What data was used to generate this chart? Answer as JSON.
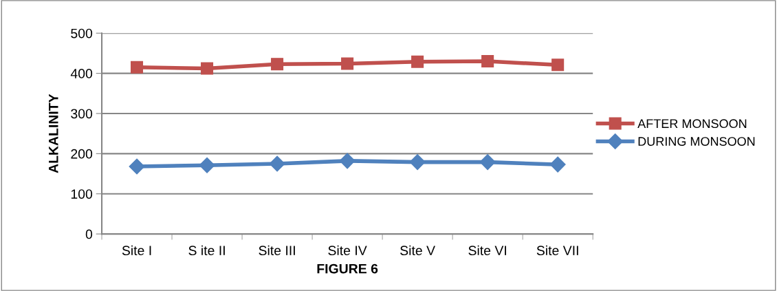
{
  "chart_data": {
    "type": "line",
    "xlabel": "FIGURE 6",
    "ylabel": "ALKALINITY",
    "categories": [
      "Site I",
      "S ite II",
      "Site III",
      "Site IV",
      "Site V",
      "Site VI",
      "Site VII"
    ],
    "series": [
      {
        "name": "AFTER MONSOON",
        "color": "#c0504d",
        "marker": "square",
        "values": [
          415,
          412,
          423,
          424,
          429,
          430,
          421
        ]
      },
      {
        "name": "DURING MONSOON",
        "color": "#4f81bd",
        "marker": "diamond",
        "values": [
          168,
          171,
          175,
          182,
          179,
          179,
          173
        ]
      }
    ],
    "ylim": [
      0,
      500
    ],
    "yticks": [
      0,
      100,
      200,
      300,
      400,
      500
    ],
    "grid": "y",
    "legend": "right",
    "line_style": "solid"
  }
}
